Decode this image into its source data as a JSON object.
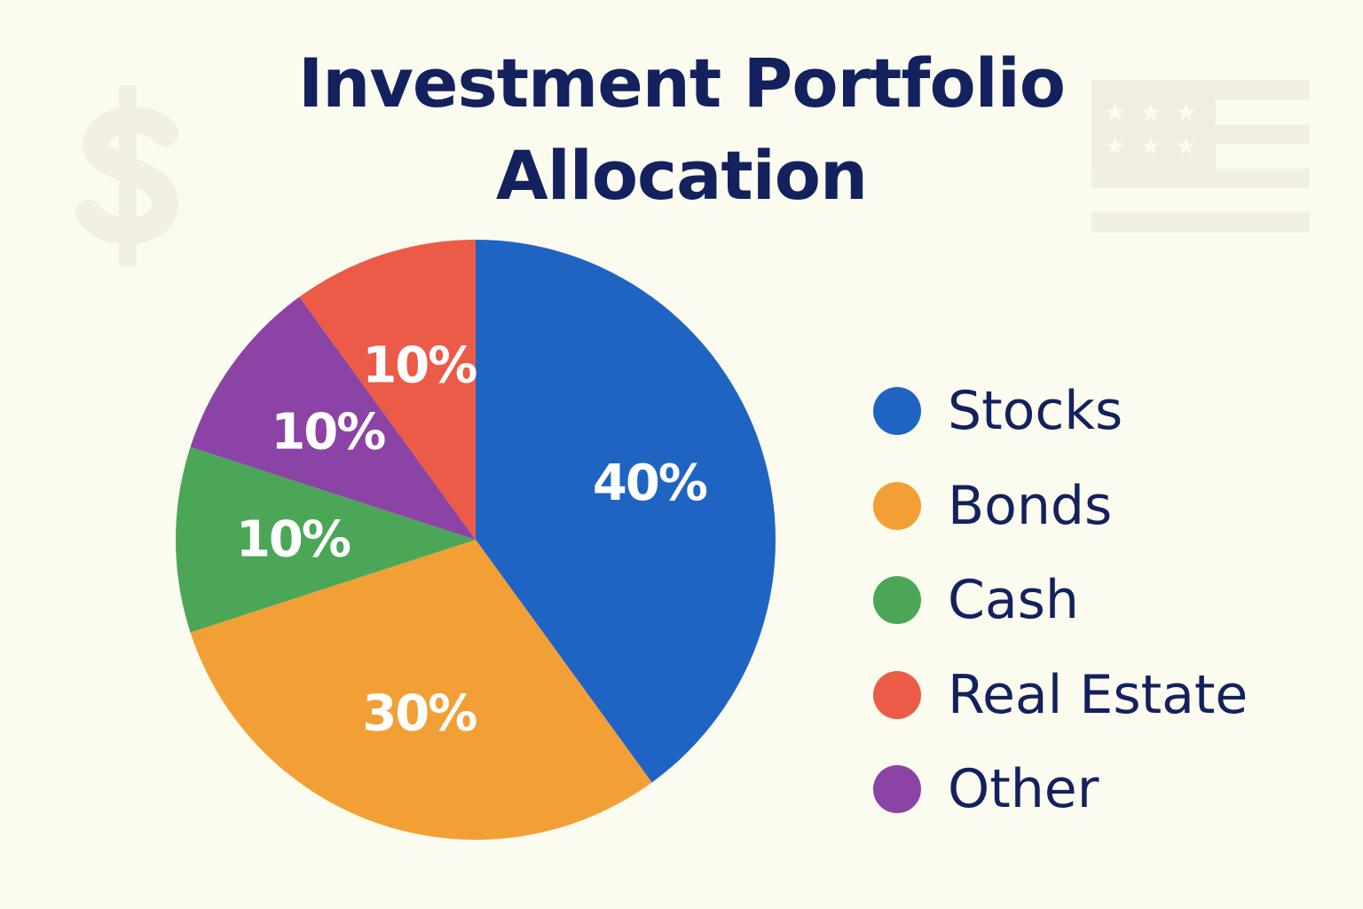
{
  "title_lines": [
    "Investment Portfolio",
    "Allocation"
  ],
  "background": "#fcfbef",
  "text_color": "#13215e",
  "decorations": [
    {
      "icon": "dollar-sign-icon",
      "color": "#f1f0e3"
    },
    {
      "icon": "flag-icon",
      "color": "#f1f0e3"
    }
  ],
  "chart_data": {
    "type": "pie",
    "title": "Investment Portfolio Allocation",
    "start_angle_deg": 0,
    "direction": "clockwise",
    "slice_label_format": "percent",
    "legend_position": "right",
    "slices": [
      {
        "name": "Stocks",
        "value": 40,
        "label": "40%",
        "color": "#1f64c3"
      },
      {
        "name": "Bonds",
        "value": 30,
        "label": "30%",
        "color": "#f2a035"
      },
      {
        "name": "Cash",
        "value": 10,
        "label": "10%",
        "color": "#4ba757"
      },
      {
        "name": "Other",
        "value": 10,
        "label": "10%",
        "color": "#8b43a5"
      },
      {
        "name": "Real Estate",
        "value": 10,
        "label": "10%",
        "color": "#eb5b48"
      }
    ],
    "legend": [
      {
        "name": "Stocks",
        "color": "#1f64c3"
      },
      {
        "name": "Bonds",
        "color": "#f2a035"
      },
      {
        "name": "Cash",
        "color": "#4ba757"
      },
      {
        "name": "Real Estate",
        "color": "#eb5b48"
      },
      {
        "name": "Other",
        "color": "#8b43a5"
      }
    ]
  }
}
